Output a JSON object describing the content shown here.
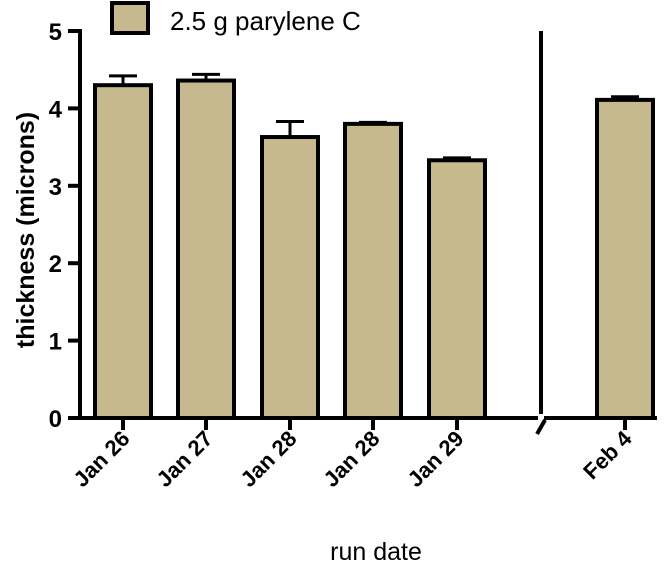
{
  "chart_data": {
    "type": "bar",
    "categories": [
      "Jan 26",
      "Jan 27",
      "Jan 28",
      "Jan 28",
      "Jan 29",
      "Feb 4"
    ],
    "series": [
      {
        "name": "2.5 g parylene C",
        "values": [
          4.3,
          4.36,
          3.63,
          3.8,
          3.33,
          4.11
        ],
        "errors": [
          0.12,
          0.08,
          0.2,
          0.02,
          0.03,
          0.04
        ]
      }
    ],
    "xlabel": "run date",
    "ylabel": "thickness (microns)",
    "ylim": [
      0,
      5
    ],
    "yticks": [
      "0",
      "1",
      "2",
      "3",
      "4",
      "5"
    ],
    "axis_break_after_index": 4,
    "grid": false,
    "legend_position": "top-left",
    "colors": {
      "bar_fill": "#c6b98d",
      "stroke": "#000000"
    }
  }
}
